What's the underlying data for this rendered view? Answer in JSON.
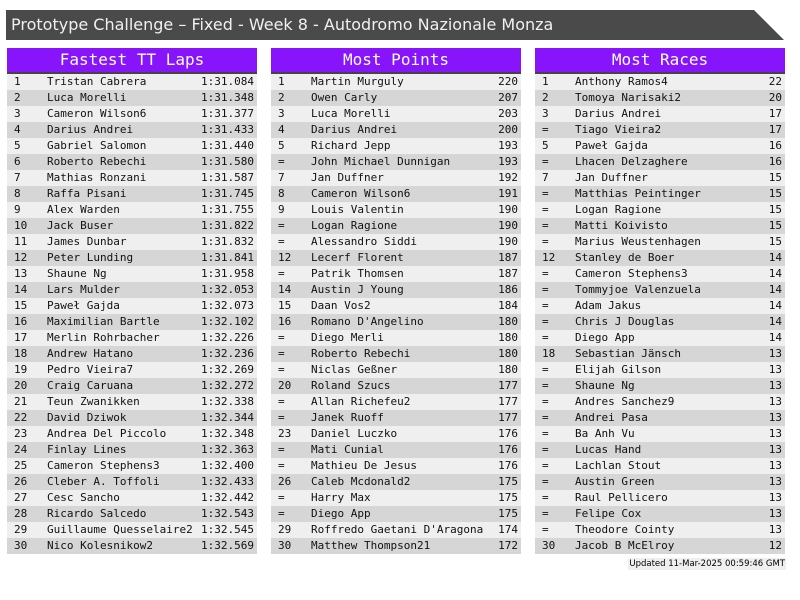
{
  "title": "Prototype Challenge – Fixed - Week 8 - Autodromo Nazionale Monza",
  "colors": {
    "title_bg": "#4a4a4a",
    "header_bg": "#8714fa",
    "row_light": "#efefef",
    "row_dark": "#d6d6d6"
  },
  "panels": [
    {
      "title": "Fastest TT Laps",
      "rows": [
        [
          "1",
          "Tristan Cabrera",
          "1:31.084"
        ],
        [
          "2",
          "Luca Morelli",
          "1:31.348"
        ],
        [
          "3",
          "Cameron Wilson6",
          "1:31.377"
        ],
        [
          "4",
          "Darius Andrei",
          "1:31.433"
        ],
        [
          "5",
          "Gabriel Salomon",
          "1:31.440"
        ],
        [
          "6",
          "Roberto Rebechi",
          "1:31.580"
        ],
        [
          "7",
          "Mathias Ronzani",
          "1:31.587"
        ],
        [
          "8",
          "Raffa Pisani",
          "1:31.745"
        ],
        [
          "9",
          "Alex Warden",
          "1:31.755"
        ],
        [
          "10",
          "Jack Buser",
          "1:31.822"
        ],
        [
          "11",
          "James Dunbar",
          "1:31.832"
        ],
        [
          "12",
          "Peter Lunding",
          "1:31.841"
        ],
        [
          "13",
          "Shaune Ng",
          "1:31.958"
        ],
        [
          "14",
          "Lars Mulder",
          "1:32.053"
        ],
        [
          "15",
          "Paweł Gajda",
          "1:32.073"
        ],
        [
          "16",
          "Maximilian Bartle",
          "1:32.102"
        ],
        [
          "17",
          "Merlin Rohrbacher",
          "1:32.226"
        ],
        [
          "18",
          "Andrew Hatano",
          "1:32.236"
        ],
        [
          "19",
          "Pedro Vieira7",
          "1:32.269"
        ],
        [
          "20",
          "Craig Caruana",
          "1:32.272"
        ],
        [
          "21",
          "Teun Zwanikken",
          "1:32.338"
        ],
        [
          "22",
          "David Dziwok",
          "1:32.344"
        ],
        [
          "23",
          "Andrea Del Piccolo",
          "1:32.348"
        ],
        [
          "24",
          "Finlay Lines",
          "1:32.363"
        ],
        [
          "25",
          "Cameron Stephens3",
          "1:32.400"
        ],
        [
          "26",
          "Cleber A. Toffoli",
          "1:32.433"
        ],
        [
          "27",
          "Cesc Sancho",
          "1:32.442"
        ],
        [
          "28",
          "Ricardo Salcedo",
          "1:32.543"
        ],
        [
          "29",
          "Guillaume Quesselaire2",
          "1:32.545"
        ],
        [
          "30",
          "Nico Kolesnikow2",
          "1:32.569"
        ]
      ]
    },
    {
      "title": "Most Points",
      "rows": [
        [
          "1",
          "Martin Murguly",
          "220"
        ],
        [
          "2",
          "Owen Carly",
          "207"
        ],
        [
          "3",
          "Luca Morelli",
          "203"
        ],
        [
          "4",
          "Darius Andrei",
          "200"
        ],
        [
          "5",
          "Richard Jepp",
          "193"
        ],
        [
          "=",
          "John Michael Dunnigan",
          "193"
        ],
        [
          "7",
          "Jan Duffner",
          "192"
        ],
        [
          "8",
          "Cameron Wilson6",
          "191"
        ],
        [
          "9",
          "Louis Valentin",
          "190"
        ],
        [
          "=",
          "Logan Ragione",
          "190"
        ],
        [
          "=",
          "Alessandro Siddi",
          "190"
        ],
        [
          "12",
          "Lecerf Florent",
          "187"
        ],
        [
          "=",
          "Patrik Thomsen",
          "187"
        ],
        [
          "14",
          "Austin J Young",
          "186"
        ],
        [
          "15",
          "Daan Vos2",
          "184"
        ],
        [
          "16",
          "Romano D'Angelino",
          "180"
        ],
        [
          "=",
          "Diego Merli",
          "180"
        ],
        [
          "=",
          "Roberto Rebechi",
          "180"
        ],
        [
          "=",
          "Niclas Geßner",
          "180"
        ],
        [
          "20",
          "Roland Szucs",
          "177"
        ],
        [
          "=",
          "Allan Richefeu2",
          "177"
        ],
        [
          "=",
          "Janek Ruoff",
          "177"
        ],
        [
          "23",
          "Daniel Luczko",
          "176"
        ],
        [
          "=",
          "Mati Cunial",
          "176"
        ],
        [
          "=",
          "Mathieu De Jesus",
          "176"
        ],
        [
          "26",
          "Caleb Mcdonald2",
          "175"
        ],
        [
          "=",
          "Harry Max",
          "175"
        ],
        [
          "=",
          "Diego App",
          "175"
        ],
        [
          "29",
          "Roffredo Gaetani D'Aragona",
          "174"
        ],
        [
          "30",
          "Matthew Thompson21",
          "172"
        ]
      ]
    },
    {
      "title": "Most Races",
      "rows": [
        [
          "1",
          "Anthony Ramos4",
          "22"
        ],
        [
          "2",
          "Tomoya Narisaki2",
          "20"
        ],
        [
          "3",
          "Darius Andrei",
          "17"
        ],
        [
          "=",
          "Tiago Vieira2",
          "17"
        ],
        [
          "5",
          "Paweł Gajda",
          "16"
        ],
        [
          "=",
          "Lhacen Delzaghere",
          "16"
        ],
        [
          "7",
          "Jan Duffner",
          "15"
        ],
        [
          "=",
          "Matthias Peintinger",
          "15"
        ],
        [
          "=",
          "Logan Ragione",
          "15"
        ],
        [
          "=",
          "Matti Koivisto",
          "15"
        ],
        [
          "=",
          "Marius Weustenhagen",
          "15"
        ],
        [
          "12",
          "Stanley de Boer",
          "14"
        ],
        [
          "=",
          "Cameron Stephens3",
          "14"
        ],
        [
          "=",
          "Tommyjoe Valenzuela",
          "14"
        ],
        [
          "=",
          "Adam Jakus",
          "14"
        ],
        [
          "=",
          "Chris J Douglas",
          "14"
        ],
        [
          "=",
          "Diego App",
          "14"
        ],
        [
          "18",
          "Sebastian Jänsch",
          "13"
        ],
        [
          "=",
          "Elijah Gilson",
          "13"
        ],
        [
          "=",
          "Shaune Ng",
          "13"
        ],
        [
          "=",
          "Andres Sanchez9",
          "13"
        ],
        [
          "=",
          "Andrei Pasa",
          "13"
        ],
        [
          "=",
          "Ba Anh Vu",
          "13"
        ],
        [
          "=",
          "Lucas Hand",
          "13"
        ],
        [
          "=",
          "Lachlan Stout",
          "13"
        ],
        [
          "=",
          "Austin Green",
          "13"
        ],
        [
          "=",
          "Raul Pellicero",
          "13"
        ],
        [
          "=",
          "Felipe Cox",
          "13"
        ],
        [
          "=",
          "Theodore Cointy",
          "13"
        ],
        [
          "30",
          "Jacob B McElroy",
          "12"
        ]
      ]
    }
  ],
  "footer": "Updated 11-Mar-2025 00:59:46 GMT"
}
